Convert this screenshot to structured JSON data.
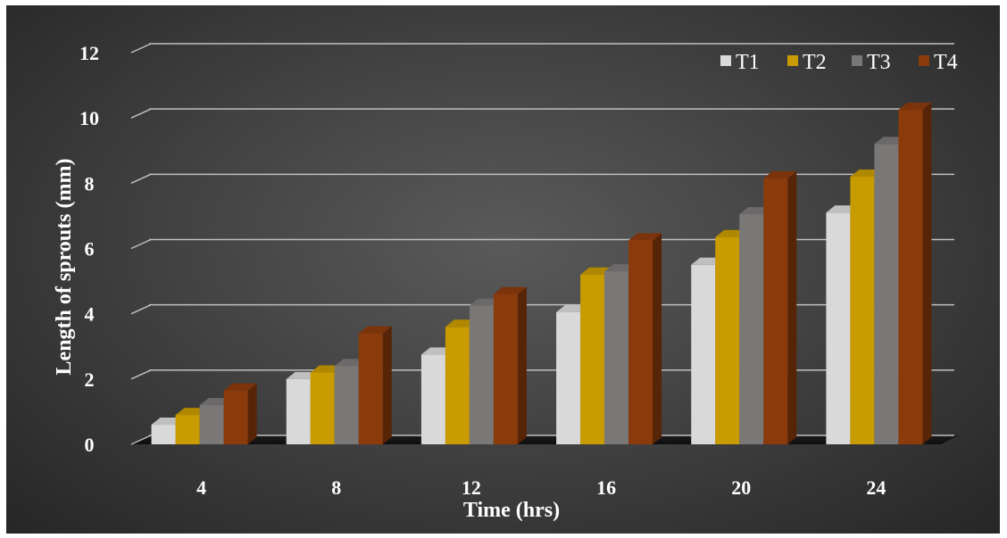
{
  "chart_data": {
    "type": "bar",
    "title": "",
    "xlabel": "Time (hrs)",
    "ylabel": "Length of sprouts (mm)",
    "categories": [
      "4",
      "8",
      "12",
      "16",
      "20",
      "24"
    ],
    "ylim": [
      0,
      12
    ],
    "yticks": [
      "0",
      "2",
      "4",
      "6",
      "8",
      "10",
      "12"
    ],
    "grid": true,
    "legend_position": "top-right",
    "series": [
      {
        "name": "T1",
        "color": "#d9d9d9",
        "values": [
          0.6,
          2.0,
          2.75,
          4.05,
          5.5,
          7.1
        ]
      },
      {
        "name": "T2",
        "color": "#c89b00",
        "values": [
          0.9,
          2.2,
          3.6,
          5.2,
          6.35,
          8.2
        ]
      },
      {
        "name": "T3",
        "color": "#7a7777",
        "values": [
          1.2,
          2.4,
          4.25,
          5.3,
          7.05,
          9.2
        ]
      },
      {
        "name": "T4",
        "color": "#8b3a0c",
        "values": [
          1.65,
          3.4,
          4.6,
          6.25,
          8.15,
          10.25
        ]
      }
    ]
  }
}
